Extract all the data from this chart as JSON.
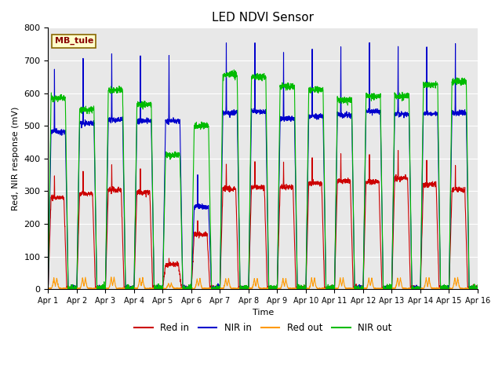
{
  "title": "LED NDVI Sensor",
  "xlabel": "Time",
  "ylabel": "Red, NIR response (mV)",
  "ylim": [
    0,
    800
  ],
  "background_color": "#e8e8e8",
  "legend_label": "MB_tule",
  "colors": {
    "red_in": "#cc0000",
    "nir_in": "#0000cc",
    "red_out": "#ff9900",
    "nir_out": "#00bb00"
  },
  "x_tick_labels": [
    "Apr 1",
    "Apr 2",
    "Apr 3",
    "Apr 4",
    "Apr 5",
    "Apr 6",
    "Apr 7",
    "Apr 8",
    "Apr 9",
    "Apr 10",
    "Apr 11",
    "Apr 12",
    "Apr 13",
    "Apr 14",
    "Apr 15",
    "Apr 16"
  ],
  "num_days": 15
}
